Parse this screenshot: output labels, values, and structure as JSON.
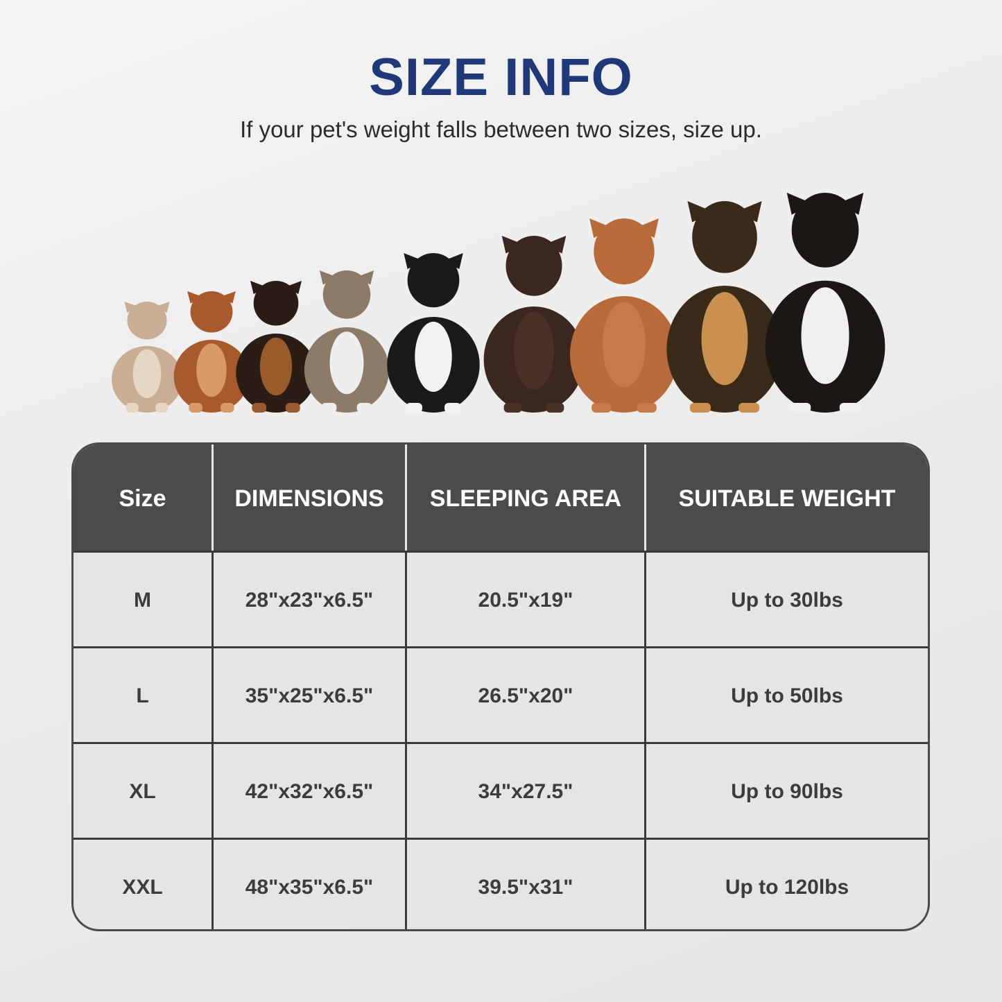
{
  "header": {
    "title": "SIZE INFO",
    "subtitle": "If your pet's weight falls between two sizes, size up."
  },
  "colors": {
    "title": "#1f3877",
    "table_header": "#4b4b4b",
    "table_cell": "#e5e5e5"
  },
  "image": {
    "subject": "dogs-lineup-icon"
  },
  "table": {
    "columns": [
      "Size",
      "DIMENSIONS",
      "SLEEPING AREA",
      "SUITABLE WEIGHT"
    ],
    "rows": [
      [
        "M",
        "28\"x23\"x6.5\"",
        "20.5\"x19\"",
        "Up to 30lbs"
      ],
      [
        "L",
        "35\"x25\"x6.5\"",
        "26.5\"x20\"",
        "Up to 50lbs"
      ],
      [
        "XL",
        "42\"x32\"x6.5\"",
        "34\"x27.5\"",
        "Up to 90lbs"
      ],
      [
        "XXL",
        "48\"x35\"x6.5\"",
        "39.5\"x31\"",
        "Up to 120lbs"
      ]
    ]
  }
}
